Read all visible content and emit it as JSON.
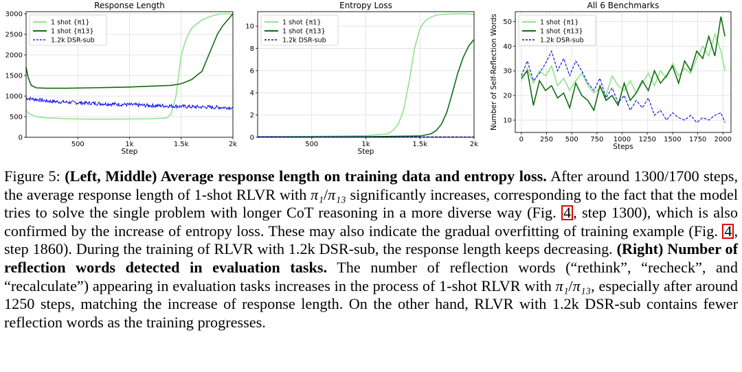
{
  "caption": {
    "figure_label": "Figure 5:",
    "lead_bold": "(Left, Middle) Average response length on training data and entropy loss.",
    "text1": "After around 1300/1700 steps, the average response length of 1-shot RLVR with",
    "pi1": "π₁",
    "slash": "/",
    "pi13": "π₁₃",
    "text2": "significantly increases, corresponding to the fact that the model tries to solve the single problem with longer CoT reasoning in a more diverse way (Fig.",
    "ref_a": "4",
    "text3": ", step 1300), which is also confirmed by the increase of entropy loss. These may also indicate the gradual overfitting of training example (Fig.",
    "ref_b": "4",
    "text4": ", step 1860). During the training of RLVR with 1.2k DSR-sub, the response length keeps decreasing.",
    "right_bold": "(Right) Number of reflection words detected in evaluation tasks.",
    "text5": "The number of reflection words (“rethink”, “recheck”, and “recalculate”) appearing in evaluation tasks increases in the process of 1-shot RLVR with",
    "pi1_b": "π₁",
    "slash_b": "/",
    "pi13_b": "π₁₃",
    "text6": ", especially after around 1250 steps, matching the increase of response length. On the other hand, RLVR with 1.2k DSR-sub contains fewer reflection words as the training progresses."
  },
  "colors": {
    "light_green": "#8fe38b",
    "dark_green": "#0e6b0e",
    "blue": "#0000ee",
    "grid": "#dddddd"
  },
  "chart_data": [
    {
      "type": "line",
      "title": "Response Length",
      "xlabel": "Step",
      "ylabel": "",
      "xlim": [
        0,
        2000
      ],
      "ylim": [
        0,
        3050
      ],
      "xticks": [
        500,
        1000,
        1500,
        2000
      ],
      "xtick_labels": [
        "500",
        "1k",
        "1.5k",
        "2k"
      ],
      "yticks": [
        0,
        500,
        1000,
        1500,
        2000,
        2500,
        3000
      ],
      "ytick_labels": [
        "0",
        "500",
        "1000",
        "1500",
        "2000",
        "2500",
        "3000"
      ],
      "legend_position": "top-left",
      "series": [
        {
          "name": "1 shot {π1}",
          "style": "light-green",
          "x": [
            0,
            40,
            100,
            200,
            400,
            600,
            800,
            1000,
            1200,
            1300,
            1360,
            1400,
            1450,
            1480,
            1500,
            1550,
            1600,
            1650,
            1700,
            1750,
            1800,
            1850,
            1900,
            1950,
            2000
          ],
          "values": [
            640,
            560,
            500,
            470,
            450,
            440,
            440,
            445,
            450,
            460,
            470,
            560,
            1000,
            1600,
            2000,
            2400,
            2650,
            2750,
            2850,
            2900,
            2950,
            2980,
            3000,
            3000,
            2980
          ]
        },
        {
          "name": "1 shot {π13}",
          "style": "dark-green",
          "x": [
            0,
            20,
            50,
            100,
            200,
            400,
            600,
            800,
            1000,
            1200,
            1400,
            1500,
            1600,
            1650,
            1700,
            1750,
            1800,
            1850,
            1900,
            1950,
            2000
          ],
          "values": [
            1700,
            1450,
            1260,
            1200,
            1190,
            1190,
            1200,
            1210,
            1220,
            1240,
            1260,
            1300,
            1400,
            1500,
            1600,
            1900,
            2200,
            2500,
            2700,
            2850,
            3000
          ]
        },
        {
          "name": "1.2k DSR-sub",
          "style": "blue-dashed-noisy",
          "x": [
            0,
            100,
            200,
            400,
            600,
            800,
            1000,
            1200,
            1400,
            1600,
            1800,
            2000
          ],
          "values": [
            950,
            920,
            880,
            850,
            830,
            810,
            790,
            770,
            760,
            740,
            730,
            720
          ]
        }
      ]
    },
    {
      "type": "line",
      "title": "Entropy Loss",
      "xlabel": "Step",
      "ylabel": "",
      "xlim": [
        0,
        2000
      ],
      "ylim": [
        0,
        11.3
      ],
      "xticks": [
        500,
        1000,
        1500,
        2000
      ],
      "xtick_labels": [
        "500",
        "1k",
        "1.5k",
        "2k"
      ],
      "yticks": [
        0,
        2,
        4,
        6,
        8,
        10
      ],
      "ytick_labels": [
        "0",
        "2",
        "4",
        "6",
        "8",
        "10"
      ],
      "legend_position": "top-left",
      "series": [
        {
          "name": "1 shot {π1}",
          "style": "light-green",
          "x": [
            0,
            500,
            1000,
            1200,
            1250,
            1300,
            1350,
            1400,
            1450,
            1500,
            1550,
            1600,
            1650,
            1700,
            1800,
            1900,
            2000
          ],
          "values": [
            0.05,
            0.08,
            0.15,
            0.3,
            0.6,
            1.2,
            2.5,
            5.0,
            8.0,
            9.8,
            10.5,
            10.8,
            11.0,
            11.05,
            11.1,
            11.1,
            11.05
          ]
        },
        {
          "name": "1 shot {π13}",
          "style": "dark-green",
          "x": [
            0,
            500,
            1000,
            1500,
            1600,
            1650,
            1700,
            1750,
            1800,
            1850,
            1900,
            1950,
            2000
          ],
          "values": [
            0.02,
            0.03,
            0.05,
            0.12,
            0.3,
            0.6,
            1.2,
            2.3,
            4.0,
            5.8,
            7.2,
            8.2,
            8.8
          ]
        },
        {
          "name": "1.2k DSR-sub",
          "style": "blue-dashed",
          "x": [
            0,
            1000,
            2000
          ],
          "values": [
            0.05,
            0.04,
            0.03
          ]
        }
      ]
    },
    {
      "type": "line",
      "title": "All 6 Benchmarks",
      "xlabel": "Steps",
      "ylabel": "Number of Self-Reflection Words",
      "xlim": [
        -60,
        2080
      ],
      "ylim": [
        5,
        54
      ],
      "xticks": [
        0,
        250,
        500,
        750,
        1000,
        1250,
        1500,
        1750,
        2000
      ],
      "xtick_labels": [
        "0",
        "250",
        "500",
        "750",
        "1000",
        "1250",
        "1500",
        "1750",
        "2000"
      ],
      "yticks": [
        10,
        20,
        30,
        40,
        50
      ],
      "ytick_labels": [
        "10",
        "20",
        "30",
        "40",
        "50"
      ],
      "legend_position": "top-left",
      "series": [
        {
          "name": "1 shot {π1}",
          "style": "light-green",
          "x": [
            0,
            60,
            120,
            180,
            240,
            300,
            360,
            420,
            480,
            540,
            600,
            660,
            720,
            780,
            840,
            900,
            960,
            1020,
            1080,
            1140,
            1200,
            1260,
            1320,
            1380,
            1440,
            1500,
            1560,
            1620,
            1680,
            1740,
            1800,
            1860,
            1920,
            1980,
            2020
          ],
          "values": [
            26,
            31,
            25,
            30,
            28,
            32,
            24,
            27,
            22,
            26,
            29,
            24,
            21,
            23,
            20,
            28,
            24,
            22,
            26,
            21,
            25,
            29,
            24,
            30,
            27,
            33,
            28,
            31,
            29,
            35,
            40,
            36,
            45,
            38,
            30
          ]
        },
        {
          "name": "1 shot {π13}",
          "style": "dark-green",
          "x": [
            0,
            60,
            120,
            180,
            240,
            300,
            360,
            420,
            480,
            540,
            600,
            660,
            720,
            780,
            840,
            900,
            960,
            1020,
            1080,
            1140,
            1200,
            1260,
            1320,
            1380,
            1440,
            1500,
            1560,
            1620,
            1680,
            1740,
            1800,
            1860,
            1920,
            1980,
            2020
          ],
          "values": [
            27,
            30,
            16,
            26,
            22,
            24,
            19,
            21,
            15,
            25,
            20,
            18,
            14,
            24,
            18,
            20,
            16,
            25,
            18,
            21,
            26,
            22,
            30,
            25,
            28,
            32,
            25,
            34,
            30,
            38,
            35,
            44,
            36,
            52,
            44
          ]
        },
        {
          "name": "1.2k DSR-sub",
          "style": "blue-dashed",
          "x": [
            0,
            60,
            120,
            180,
            240,
            300,
            360,
            420,
            480,
            540,
            600,
            660,
            720,
            780,
            840,
            900,
            960,
            1020,
            1080,
            1140,
            1200,
            1260,
            1320,
            1380,
            1440,
            1500,
            1560,
            1620,
            1680,
            1740,
            1800,
            1860,
            1920,
            1980,
            2020
          ],
          "values": [
            28,
            34,
            26,
            29,
            33,
            38,
            30,
            35,
            28,
            34,
            30,
            25,
            22,
            27,
            19,
            23,
            17,
            20,
            14,
            18,
            15,
            19,
            12,
            14,
            10,
            13,
            11,
            10,
            12,
            9,
            11,
            10,
            12,
            13,
            9
          ]
        }
      ]
    }
  ]
}
